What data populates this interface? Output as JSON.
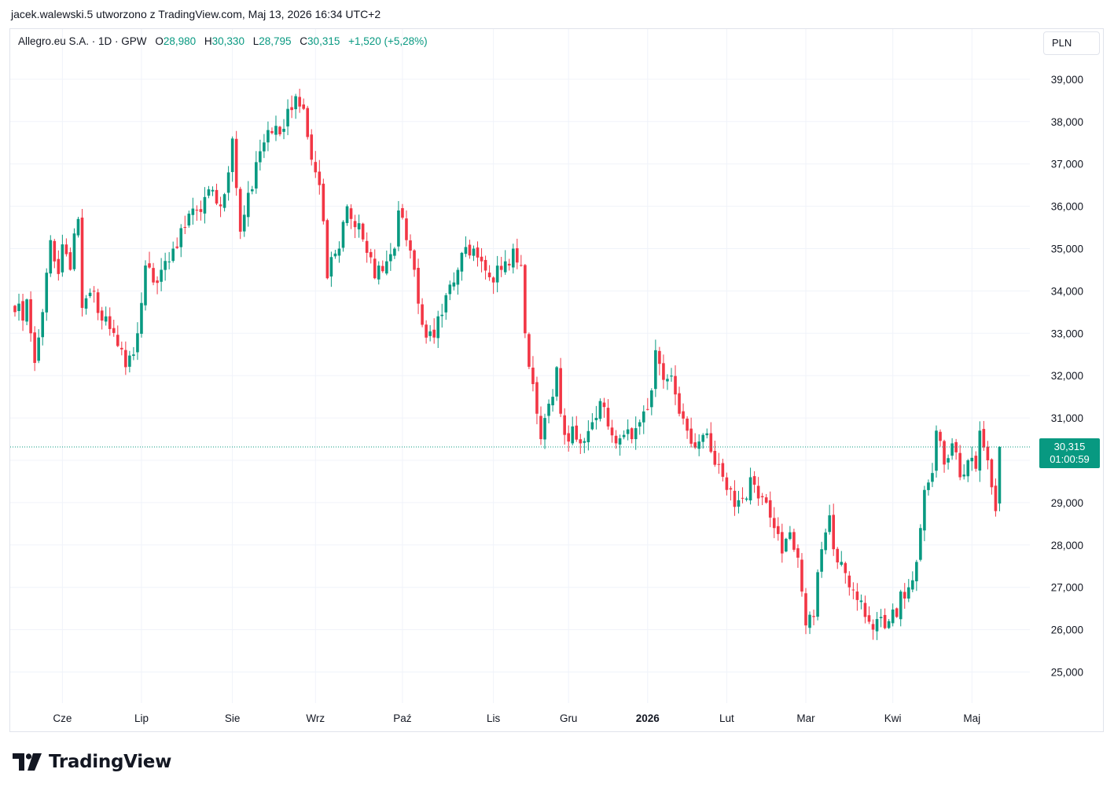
{
  "caption": "jacek.walewski.5 utworzono z TradingView.com, Maj 13, 2026 16:34 UTC+2",
  "legend": {
    "symbol": "Allegro.eu S.A. · 1D · GPW",
    "open_label": "O",
    "open": "28,980",
    "high_label": "H",
    "high": "30,330",
    "low_label": "L",
    "low": "28,795",
    "close_label": "C",
    "close": "30,315",
    "change": "+1,520 (+5,28%)"
  },
  "currency": "PLN",
  "price_tag": {
    "price": "30,315",
    "countdown": "01:00:59"
  },
  "brand": "TradingView",
  "colors": {
    "up": "#089981",
    "down": "#f23645",
    "grid": "#f0f3fa",
    "text": "#131722"
  },
  "chart_data": {
    "type": "candlestick",
    "y_axis": {
      "range": [
        24000,
        39800
      ],
      "ticks": [
        25000,
        26000,
        27000,
        28000,
        29000,
        30000,
        31000,
        32000,
        33000,
        34000,
        35000,
        36000,
        37000,
        38000,
        39000
      ],
      "tick_labels": [
        "25,000",
        "26,000",
        "27,000",
        "28,000",
        "29,000",
        "30,000",
        "31,000",
        "32,000",
        "33,000",
        "34,000",
        "35,000",
        "36,000",
        "37,000",
        "38,000",
        "39,000"
      ]
    },
    "x_axis": {
      "labels": [
        {
          "text": "Cze",
          "bar": 12,
          "bold": false
        },
        {
          "text": "Lip",
          "bar": 32,
          "bold": false
        },
        {
          "text": "Sie",
          "bar": 55,
          "bold": false
        },
        {
          "text": "Wrz",
          "bar": 76,
          "bold": false
        },
        {
          "text": "Paź",
          "bar": 98,
          "bold": false
        },
        {
          "text": "Lis",
          "bar": 121,
          "bold": false
        },
        {
          "text": "Gru",
          "bar": 140,
          "bold": false
        },
        {
          "text": "2026",
          "bar": 160,
          "bold": true
        },
        {
          "text": "Lut",
          "bar": 180,
          "bold": false
        },
        {
          "text": "Mar",
          "bar": 200,
          "bold": false
        },
        {
          "text": "Kwi",
          "bar": 222,
          "bold": false
        },
        {
          "text": "Maj",
          "bar": 242,
          "bold": false
        }
      ]
    },
    "last_price": 30315,
    "anchors": [
      [
        0,
        33500
      ],
      [
        1,
        33700
      ],
      [
        2,
        33300
      ],
      [
        3,
        33800
      ],
      [
        4,
        33000
      ],
      [
        5,
        32300
      ],
      [
        6,
        32900
      ],
      [
        7,
        33500
      ],
      [
        9,
        35200
      ],
      [
        11,
        34400
      ],
      [
        12,
        35100
      ],
      [
        14,
        34500
      ],
      [
        16,
        35700
      ],
      [
        17,
        33600
      ],
      [
        20,
        34000
      ],
      [
        22,
        33300
      ],
      [
        24,
        33100
      ],
      [
        26,
        32700
      ],
      [
        28,
        32200
      ],
      [
        30,
        32500
      ],
      [
        31,
        33000
      ],
      [
        33,
        34600
      ],
      [
        35,
        34200
      ],
      [
        37,
        34500
      ],
      [
        40,
        35000
      ],
      [
        43,
        35500
      ],
      [
        46,
        35900
      ],
      [
        49,
        36400
      ],
      [
        52,
        36000
      ],
      [
        54,
        36800
      ],
      [
        55,
        37600
      ],
      [
        57,
        35400
      ],
      [
        58,
        35800
      ],
      [
        60,
        36400
      ],
      [
        62,
        37300
      ],
      [
        64,
        37800
      ],
      [
        67,
        37700
      ],
      [
        69,
        38300
      ],
      [
        71,
        38600
      ],
      [
        73,
        38300
      ],
      [
        75,
        37100
      ],
      [
        77,
        36500
      ],
      [
        79,
        34300
      ],
      [
        80,
        34800
      ],
      [
        82,
        35000
      ],
      [
        84,
        36000
      ],
      [
        85,
        35700
      ],
      [
        87,
        35600
      ],
      [
        89,
        34900
      ],
      [
        91,
        34300
      ],
      [
        94,
        34700
      ],
      [
        96,
        35000
      ],
      [
        97,
        35900
      ],
      [
        99,
        35200
      ],
      [
        101,
        34500
      ],
      [
        102,
        33700
      ],
      [
        103,
        33200
      ],
      [
        106,
        32900
      ],
      [
        107,
        33400
      ],
      [
        109,
        33900
      ],
      [
        111,
        34200
      ],
      [
        113,
        34900
      ],
      [
        116,
        35000
      ],
      [
        118,
        34700
      ],
      [
        121,
        34200
      ],
      [
        124,
        34700
      ],
      [
        126,
        35000
      ],
      [
        128,
        34600
      ],
      [
        129,
        33000
      ],
      [
        131,
        31800
      ],
      [
        132,
        31100
      ],
      [
        133,
        30500
      ],
      [
        134,
        31000
      ],
      [
        136,
        31500
      ],
      [
        137,
        32200
      ],
      [
        138,
        31100
      ],
      [
        139,
        30600
      ],
      [
        141,
        30800
      ],
      [
        143,
        30400
      ],
      [
        146,
        30900
      ],
      [
        148,
        31400
      ],
      [
        150,
        30800
      ],
      [
        152,
        30400
      ],
      [
        154,
        30600
      ],
      [
        156,
        30500
      ],
      [
        158,
        30900
      ],
      [
        160,
        31200
      ],
      [
        162,
        32600
      ],
      [
        164,
        31900
      ],
      [
        166,
        32000
      ],
      [
        168,
        31100
      ],
      [
        170,
        30700
      ],
      [
        172,
        30300
      ],
      [
        174,
        30600
      ],
      [
        176,
        30200
      ],
      [
        178,
        29900
      ],
      [
        180,
        29300
      ],
      [
        182,
        28900
      ],
      [
        184,
        29100
      ],
      [
        186,
        29600
      ],
      [
        188,
        29100
      ],
      [
        190,
        29000
      ],
      [
        192,
        28400
      ],
      [
        194,
        27800
      ],
      [
        196,
        28300
      ],
      [
        198,
        27700
      ],
      [
        199,
        26900
      ],
      [
        200,
        26100
      ],
      [
        202,
        26300
      ],
      [
        204,
        27900
      ],
      [
        206,
        28700
      ],
      [
        207,
        27900
      ],
      [
        209,
        27600
      ],
      [
        211,
        27000
      ],
      [
        213,
        26700
      ],
      [
        215,
        26300
      ],
      [
        217,
        26000
      ],
      [
        219,
        26300
      ],
      [
        221,
        26200
      ],
      [
        223,
        26300
      ],
      [
        224,
        26900
      ],
      [
        226,
        27000
      ],
      [
        228,
        27600
      ],
      [
        229,
        28400
      ],
      [
        230,
        29300
      ],
      [
        232,
        29700
      ],
      [
        233,
        30700
      ],
      [
        235,
        29900
      ],
      [
        237,
        30400
      ],
      [
        239,
        29600
      ],
      [
        241,
        30000
      ],
      [
        243,
        29800
      ],
      [
        244,
        30700
      ],
      [
        246,
        30000
      ],
      [
        248,
        28800
      ],
      [
        249,
        30315
      ]
    ]
  }
}
